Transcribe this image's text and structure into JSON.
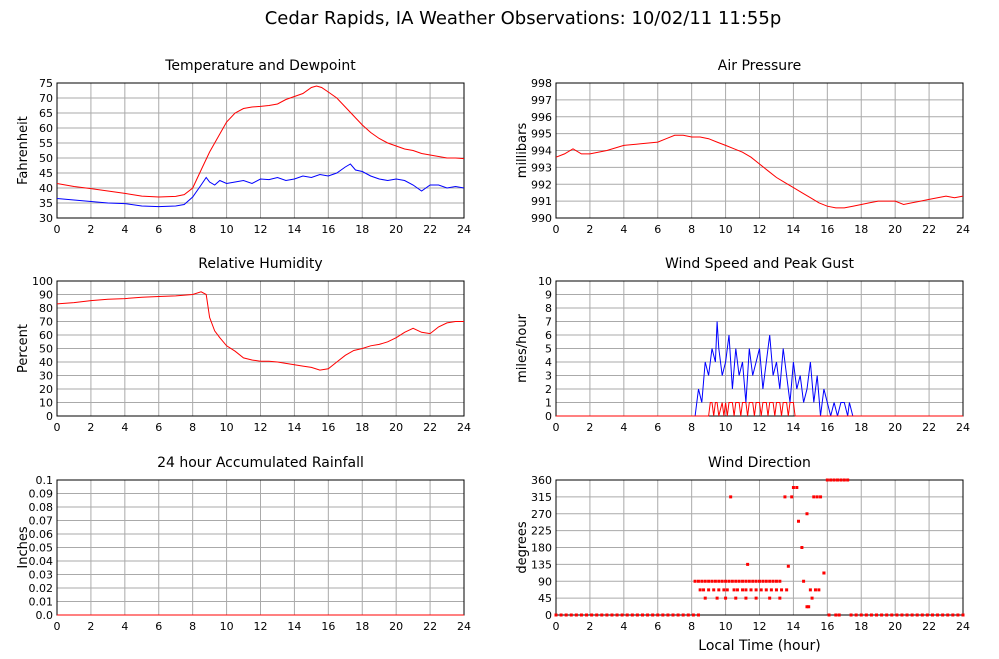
{
  "title": "Cedar Rapids, IA Weather Observations: 10/02/11 11:55p",
  "colors": {
    "red": "#ff0000",
    "blue": "#0000ff",
    "grid": "#aaaaaa",
    "frame": "#000000"
  },
  "chart_data": [
    {
      "id": "temp",
      "type": "line",
      "title": "Temperature and Dewpoint",
      "xlabel": "",
      "ylabel": "Fahrenheit",
      "xlim": [
        0,
        24
      ],
      "ylim": [
        30,
        75
      ],
      "xticks": [
        0,
        2,
        4,
        6,
        8,
        10,
        12,
        14,
        16,
        18,
        20,
        22,
        24
      ],
      "yticks": [
        30,
        35,
        40,
        45,
        50,
        55,
        60,
        65,
        70,
        75
      ],
      "series": [
        {
          "color": "#ff0000",
          "x": [
            0,
            1,
            2,
            3,
            4,
            5,
            6,
            7,
            7.5,
            8,
            8.5,
            9,
            9.5,
            10,
            10.5,
            11,
            11.5,
            12,
            12.5,
            13,
            13.5,
            14,
            14.5,
            15,
            15.3,
            15.6,
            16,
            16.5,
            17,
            17.5,
            18,
            18.5,
            19,
            19.5,
            20,
            20.5,
            21,
            21.5,
            22,
            22.5,
            23,
            23.5,
            24
          ],
          "y": [
            41.5,
            40.5,
            39.8,
            39,
            38.2,
            37.3,
            37,
            37.2,
            37.8,
            40,
            46,
            52,
            57,
            62,
            65,
            66.5,
            67,
            67.2,
            67.5,
            68,
            69.5,
            70.5,
            71.5,
            73.5,
            74,
            73.5,
            72,
            70,
            67,
            64,
            61,
            58.5,
            56.5,
            55,
            54,
            53,
            52.5,
            51.5,
            51,
            50.5,
            50,
            50,
            49.8
          ]
        },
        {
          "color": "#0000ff",
          "x": [
            0,
            1,
            2,
            3,
            4,
            5,
            6,
            7,
            7.5,
            8,
            8.5,
            8.8,
            9,
            9.3,
            9.6,
            10,
            10.5,
            11,
            11.5,
            12,
            12.5,
            13,
            13.5,
            14,
            14.5,
            15,
            15.5,
            16,
            16.5,
            17,
            17.3,
            17.6,
            18,
            18.5,
            19,
            19.5,
            20,
            20.5,
            21,
            21.5,
            22,
            22.5,
            23,
            23.5,
            24
          ],
          "y": [
            36.5,
            36,
            35.5,
            35,
            34.8,
            34,
            33.8,
            34,
            34.5,
            37,
            41,
            43.5,
            42,
            41,
            42.5,
            41.5,
            42,
            42.5,
            41.5,
            43,
            42.8,
            43.5,
            42.5,
            43,
            44,
            43.5,
            44.5,
            44,
            45,
            47,
            48,
            46,
            45.5,
            44,
            43,
            42.5,
            43,
            42.5,
            41,
            39,
            41,
            41,
            40,
            40.5,
            40
          ]
        }
      ]
    },
    {
      "id": "pressure",
      "type": "line",
      "title": "Air Pressure",
      "xlabel": "",
      "ylabel": "millibars",
      "xlim": [
        0,
        24
      ],
      "ylim": [
        990,
        998
      ],
      "xticks": [
        0,
        2,
        4,
        6,
        8,
        10,
        12,
        14,
        16,
        18,
        20,
        22,
        24
      ],
      "yticks": [
        990,
        991,
        992,
        993,
        994,
        995,
        996,
        997,
        998
      ],
      "series": [
        {
          "color": "#ff0000",
          "x": [
            0,
            0.5,
            1,
            1.5,
            2,
            3,
            4,
            5,
            6,
            6.5,
            7,
            7.5,
            8,
            8.5,
            9,
            9.5,
            10,
            10.5,
            11,
            11.5,
            12,
            12.5,
            13,
            13.5,
            14,
            14.5,
            15,
            15.5,
            16,
            16.5,
            17,
            17.5,
            18,
            18.5,
            19,
            19.5,
            20,
            20.5,
            21,
            21.5,
            22,
            22.5,
            23,
            23.5,
            24
          ],
          "y": [
            993.6,
            993.8,
            994.1,
            993.8,
            993.8,
            994,
            994.3,
            994.4,
            994.5,
            994.7,
            994.9,
            994.9,
            994.8,
            994.8,
            994.7,
            994.5,
            994.3,
            994.1,
            993.9,
            993.6,
            993.2,
            992.8,
            992.4,
            992.1,
            991.8,
            991.5,
            991.2,
            990.9,
            990.7,
            990.6,
            990.6,
            990.7,
            990.8,
            990.9,
            991,
            991,
            991,
            990.8,
            990.9,
            991,
            991.1,
            991.2,
            991.3,
            991.2,
            991.3
          ]
        }
      ]
    },
    {
      "id": "humidity",
      "type": "line",
      "title": "Relative Humidity",
      "xlabel": "",
      "ylabel": "Percent",
      "xlim": [
        0,
        24
      ],
      "ylim": [
        0,
        100
      ],
      "xticks": [
        0,
        2,
        4,
        6,
        8,
        10,
        12,
        14,
        16,
        18,
        20,
        22,
        24
      ],
      "yticks": [
        0,
        10,
        20,
        30,
        40,
        50,
        60,
        70,
        80,
        90,
        100
      ],
      "series": [
        {
          "color": "#ff0000",
          "x": [
            0,
            1,
            2,
            3,
            4,
            5,
            6,
            7,
            8,
            8.5,
            8.8,
            9,
            9.3,
            9.6,
            10,
            10.5,
            11,
            11.5,
            12,
            12.5,
            13,
            13.5,
            14,
            14.5,
            15,
            15.5,
            16,
            16.5,
            17,
            17.5,
            18,
            18.5,
            19,
            19.5,
            20,
            20.5,
            21,
            21.5,
            22,
            22.5,
            23,
            23.5,
            24
          ],
          "y": [
            83,
            84,
            85.5,
            86.5,
            87,
            88,
            88.5,
            89,
            90,
            92,
            90,
            73,
            63,
            58,
            52,
            48,
            43,
            41.5,
            40.5,
            40.5,
            40,
            39,
            38,
            37,
            36,
            34,
            35,
            40,
            45,
            48.5,
            50,
            52,
            53,
            55,
            58,
            62,
            65,
            62,
            61,
            66,
            69,
            70,
            70
          ]
        }
      ]
    },
    {
      "id": "wind",
      "type": "line",
      "title": "Wind Speed and Peak Gust",
      "xlabel": "",
      "ylabel": "miles/hour",
      "xlim": [
        0,
        24
      ],
      "ylim": [
        0,
        10
      ],
      "xticks": [
        0,
        2,
        4,
        6,
        8,
        10,
        12,
        14,
        16,
        18,
        20,
        22,
        24
      ],
      "yticks": [
        0,
        1,
        2,
        3,
        4,
        5,
        6,
        7,
        8,
        9,
        10
      ],
      "series": [
        {
          "color": "#0000ff",
          "x": [
            0,
            8.2,
            8.4,
            8.6,
            8.8,
            9.0,
            9.2,
            9.4,
            9.5,
            9.6,
            9.8,
            10.0,
            10.2,
            10.4,
            10.6,
            10.8,
            11.0,
            11.2,
            11.4,
            11.6,
            11.8,
            12.0,
            12.2,
            12.4,
            12.6,
            12.8,
            13.0,
            13.2,
            13.4,
            13.6,
            13.8,
            14.0,
            14.2,
            14.4,
            14.6,
            14.8,
            15.0,
            15.2,
            15.4,
            15.6,
            15.8,
            16.0,
            16.2,
            16.4,
            16.6,
            16.8,
            17.0,
            17.2,
            17.3,
            17.5,
            24
          ],
          "y": [
            0,
            0,
            2,
            1,
            4,
            3,
            5,
            4,
            7,
            5,
            3,
            4,
            6,
            2,
            5,
            3,
            4,
            1,
            5,
            3,
            4,
            5,
            2,
            4,
            6,
            3,
            4,
            2,
            5,
            3,
            1,
            4,
            2,
            3,
            1,
            2,
            4,
            1,
            3,
            0,
            2,
            1,
            0,
            1,
            0,
            1,
            1,
            0,
            1,
            0,
            0
          ]
        },
        {
          "color": "#ff0000",
          "x": [
            0,
            9.0,
            9.1,
            9.2,
            9.3,
            9.4,
            9.5,
            9.6,
            9.8,
            9.9,
            10.0,
            10.1,
            10.2,
            10.4,
            10.5,
            10.6,
            10.8,
            10.9,
            11.0,
            11.2,
            11.3,
            11.4,
            11.6,
            11.7,
            11.8,
            12.0,
            12.1,
            12.2,
            12.4,
            12.5,
            12.6,
            12.8,
            12.9,
            13.0,
            13.2,
            13.3,
            13.4,
            13.6,
            13.7,
            13.8,
            14.0,
            14.1,
            24
          ],
          "y": [
            0,
            0,
            1,
            1,
            0,
            1,
            1,
            0,
            1,
            0,
            1,
            0,
            1,
            1,
            0,
            1,
            1,
            0,
            1,
            1,
            0,
            1,
            1,
            0,
            1,
            1,
            0,
            1,
            1,
            0,
            1,
            1,
            0,
            1,
            1,
            0,
            1,
            1,
            0,
            1,
            1,
            0,
            0
          ]
        }
      ]
    },
    {
      "id": "rain",
      "type": "line",
      "title": "24 hour Accumulated Rainfall",
      "xlabel": "",
      "ylabel": "Inches",
      "xlim": [
        0,
        24
      ],
      "ylim": [
        0,
        0.1
      ],
      "xticks": [
        0,
        2,
        4,
        6,
        8,
        10,
        12,
        14,
        16,
        18,
        20,
        22,
        24
      ],
      "yticks": [
        "0.0",
        "0.01",
        "0.02",
        "0.03",
        "0.04",
        "0.05",
        "0.06",
        "0.07",
        "0.08",
        "0.09",
        "0.1"
      ],
      "series": [
        {
          "color": "#ff0000",
          "x": [
            0,
            24
          ],
          "y": [
            0,
            0
          ]
        }
      ]
    },
    {
      "id": "direction",
      "type": "scatter",
      "title": "Wind Direction",
      "xlabel": "Local Time (hour)",
      "ylabel": "degrees",
      "xlim": [
        0,
        24
      ],
      "ylim": [
        0,
        360
      ],
      "xticks": [
        0,
        2,
        4,
        6,
        8,
        10,
        12,
        14,
        16,
        18,
        20,
        22,
        24
      ],
      "yticks": [
        0,
        45,
        90,
        135,
        180,
        225,
        270,
        315,
        360
      ],
      "series": [
        {
          "color": "#ff0000",
          "x": [
            8.2,
            8.4,
            8.6,
            8.8,
            9.0,
            9.2,
            9.4,
            9.6,
            9.8,
            10.0,
            10.2,
            10.4,
            10.6,
            10.8,
            11.0,
            11.2,
            11.4,
            11.6,
            11.8,
            12.0,
            12.2,
            12.4,
            12.6,
            12.8,
            13.0,
            13.2,
            8.5,
            8.7,
            9.0,
            9.3,
            9.6,
            9.9,
            10.1,
            10.5,
            10.7,
            11.0,
            11.2,
            11.5,
            11.8,
            12.1,
            12.4,
            12.7,
            13.0,
            13.3,
            13.6,
            8.8,
            9.5,
            10.0,
            10.6,
            11.2,
            11.8,
            12.6,
            13.2,
            10.3,
            11.3,
            13.5,
            13.7,
            14.0,
            14.2,
            13.9,
            14.3,
            14.5,
            14.6,
            14.8,
            15.0,
            15.2,
            15.4,
            15.6,
            15.8,
            16.0,
            16.2,
            16.4,
            16.6,
            16.8,
            17.0,
            17.2,
            15.8,
            15.3,
            15.5,
            14.8,
            14.9,
            15.1,
            16.1,
            16.5,
            16.7
          ],
          "y": [
            90,
            90,
            90,
            90,
            90,
            90,
            90,
            90,
            90,
            90,
            90,
            90,
            90,
            90,
            90,
            90,
            90,
            90,
            90,
            90,
            90,
            90,
            90,
            90,
            90,
            90,
            67,
            67,
            67,
            67,
            67,
            67,
            67,
            67,
            67,
            67,
            67,
            67,
            67,
            67,
            67,
            67,
            67,
            67,
            67,
            45,
            45,
            45,
            45,
            45,
            45,
            45,
            45,
            315,
            135,
            315,
            130,
            340,
            340,
            315,
            250,
            180,
            90,
            270,
            67,
            315,
            315,
            315,
            112,
            360,
            360,
            360,
            360,
            360,
            360,
            360,
            112,
            67,
            67,
            22,
            22,
            45,
            0,
            0,
            0
          ]
        },
        {
          "color": "#ff0000",
          "x": [
            0,
            0.3,
            0.6,
            0.9,
            1.2,
            1.5,
            1.8,
            2.1,
            2.4,
            2.7,
            3.0,
            3.3,
            3.6,
            3.9,
            4.2,
            4.5,
            4.8,
            5.1,
            5.4,
            5.7,
            6.0,
            6.3,
            6.6,
            6.9,
            7.2,
            7.5,
            7.8,
            8.1,
            8.4,
            17.4,
            17.7,
            18.0,
            18.3,
            18.6,
            18.9,
            19.2,
            19.5,
            19.8,
            20.1,
            20.4,
            20.7,
            21.0,
            21.3,
            21.6,
            21.9,
            22.2,
            22.5,
            22.8,
            23.1,
            23.4,
            23.7,
            24
          ],
          "y": [
            0,
            0,
            0,
            0,
            0,
            0,
            0,
            0,
            0,
            0,
            0,
            0,
            0,
            0,
            0,
            0,
            0,
            0,
            0,
            0,
            0,
            0,
            0,
            0,
            0,
            0,
            0,
            0,
            0,
            0,
            0,
            0,
            0,
            0,
            0,
            0,
            0,
            0,
            0,
            0,
            0,
            0,
            0,
            0,
            0,
            0,
            0,
            0,
            0,
            0,
            0,
            0
          ]
        }
      ]
    }
  ]
}
